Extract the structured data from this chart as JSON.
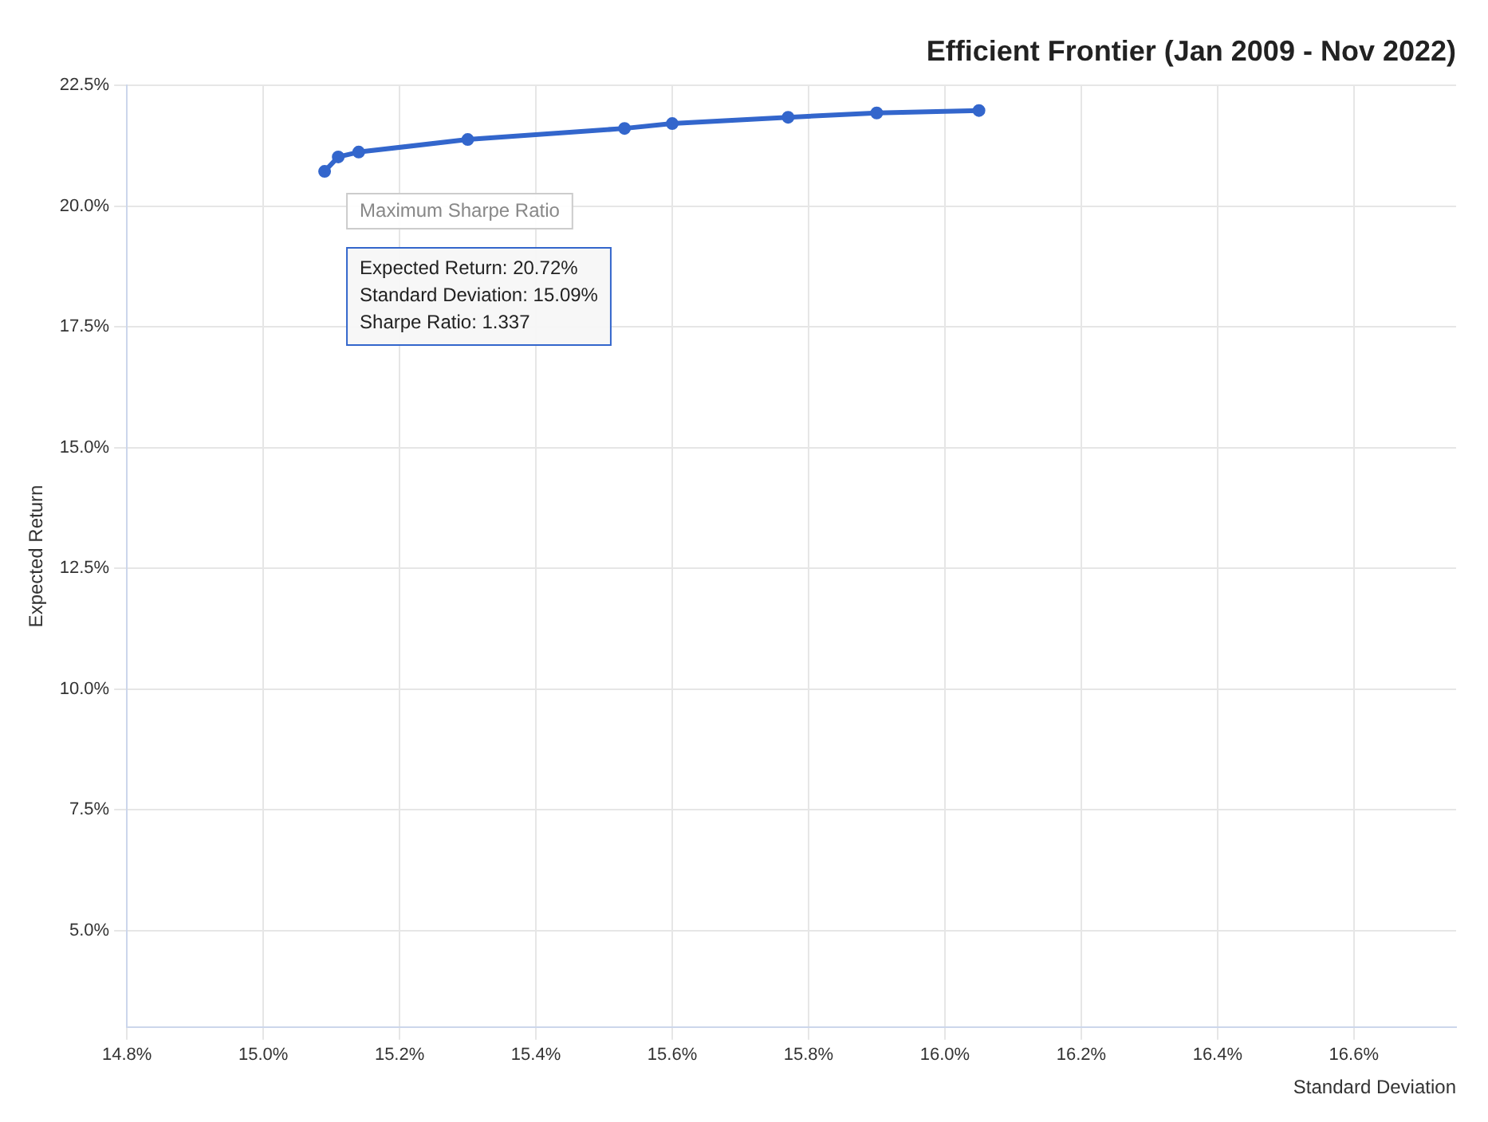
{
  "chart_data": {
    "type": "line",
    "title": "Efficient Frontier (Jan 2009 - Nov 2022)",
    "xlabel": "Standard Deviation",
    "ylabel": "Expected Return",
    "x": [
      15.09,
      15.11,
      15.14,
      15.3,
      15.53,
      15.6,
      15.77,
      15.9,
      16.05
    ],
    "series": [
      {
        "color": "#3366cc",
        "values": [
          20.72,
          21.02,
          21.12,
          21.38,
          21.61,
          21.71,
          21.84,
          21.93,
          21.98
        ]
      }
    ],
    "xlim": [
      14.8,
      16.75
    ],
    "xticks": [
      {
        "value": 14.8,
        "label": "14.8%"
      },
      {
        "value": 15.0,
        "label": "15.0%"
      },
      {
        "value": 15.2,
        "label": "15.2%"
      },
      {
        "value": 15.4,
        "label": "15.4%"
      },
      {
        "value": 15.6,
        "label": "15.6%"
      },
      {
        "value": 15.8,
        "label": "15.8%"
      },
      {
        "value": 16.0,
        "label": "16.0%"
      },
      {
        "value": 16.2,
        "label": "16.2%"
      },
      {
        "value": 16.4,
        "label": "16.4%"
      },
      {
        "value": 16.6,
        "label": "16.6%"
      }
    ],
    "ylim": [
      3,
      22.5
    ],
    "yticks": [
      {
        "value": 5,
        "label": "5.0%"
      },
      {
        "value": 7.5,
        "label": "7.5%"
      },
      {
        "value": 10,
        "label": "10.0%"
      },
      {
        "value": 12.5,
        "label": "12.5%"
      },
      {
        "value": 15,
        "label": "15.0%"
      },
      {
        "value": 17.5,
        "label": "17.5%"
      },
      {
        "value": 20,
        "label": "20.0%"
      },
      {
        "value": 22.5,
        "label": "22.5%"
      }
    ],
    "grid": true,
    "legend": false,
    "marker": "circle",
    "line_style": "solid",
    "annotations": [
      {
        "text": "Maximum Sharpe Ratio",
        "x": 15.09,
        "y": 20.72
      },
      "Expected Return: 20.72%",
      "Standard Deviation: 15.09%",
      "Sharpe Ratio: 1.337"
    ]
  }
}
